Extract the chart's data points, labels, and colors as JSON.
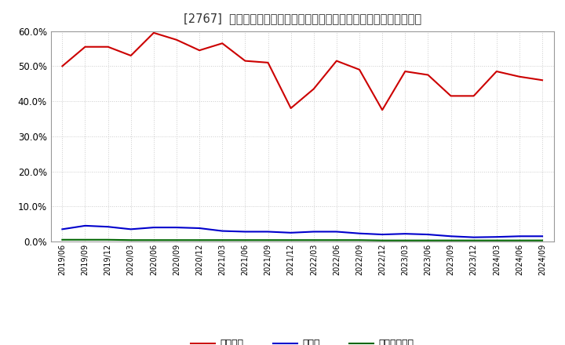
{
  "title": "[2767]  自己資本、のれん、繰延税金資産の総資産に対する比率の推移",
  "x_labels": [
    "2019/06",
    "2019/09",
    "2019/12",
    "2020/03",
    "2020/06",
    "2020/09",
    "2020/12",
    "2021/03",
    "2021/06",
    "2021/09",
    "2021/12",
    "2022/03",
    "2022/06",
    "2022/09",
    "2022/12",
    "2023/03",
    "2023/06",
    "2023/09",
    "2023/12",
    "2024/03",
    "2024/06",
    "2024/09"
  ],
  "jiko_shihon": [
    50.0,
    55.5,
    55.5,
    53.0,
    59.5,
    57.5,
    54.5,
    56.5,
    51.5,
    51.0,
    38.0,
    43.5,
    51.5,
    49.0,
    37.5,
    48.5,
    47.5,
    41.5,
    41.5,
    48.5,
    47.0,
    46.0
  ],
  "noren": [
    3.5,
    4.5,
    4.2,
    3.5,
    4.0,
    4.0,
    3.8,
    3.0,
    2.8,
    2.8,
    2.5,
    2.8,
    2.8,
    2.3,
    2.0,
    2.2,
    2.0,
    1.5,
    1.2,
    1.3,
    1.5,
    1.5
  ],
  "kurinobezeikinsisan": [
    0.5,
    0.5,
    0.5,
    0.4,
    0.4,
    0.4,
    0.4,
    0.4,
    0.4,
    0.4,
    0.4,
    0.4,
    0.4,
    0.4,
    0.3,
    0.3,
    0.3,
    0.3,
    0.3,
    0.3,
    0.3,
    0.3
  ],
  "color_jiko": "#cc0000",
  "color_noren": "#0000cc",
  "color_kurinobe": "#006600",
  "ylim": [
    0.0,
    60.0
  ],
  "yticks": [
    0.0,
    10.0,
    20.0,
    30.0,
    40.0,
    50.0,
    60.0
  ],
  "legend_labels": [
    "自己資本",
    "のれん",
    "繰延税金資産"
  ],
  "background_color": "#ffffff",
  "grid_color": "#cccccc"
}
